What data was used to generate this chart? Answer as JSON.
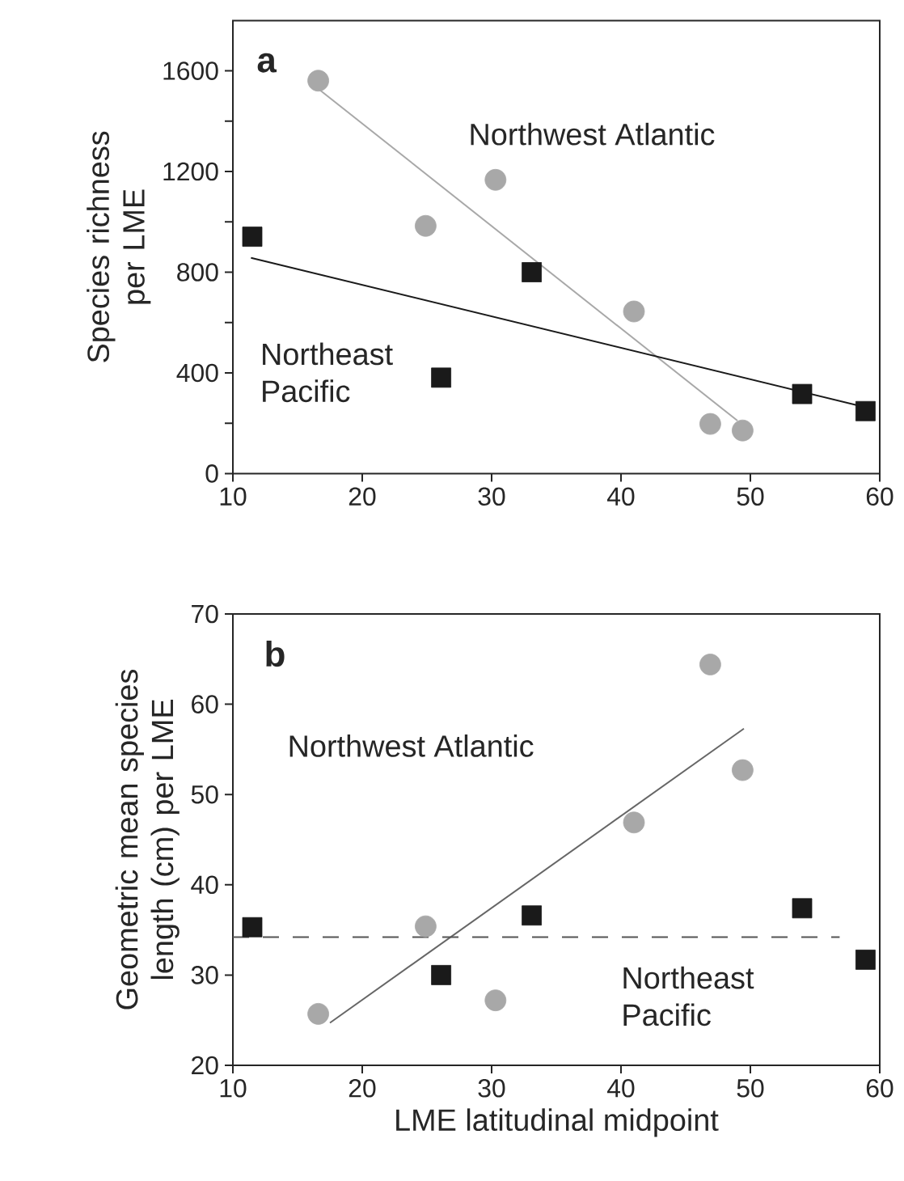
{
  "chart_data": [
    {
      "type": "scatter",
      "ylabel": "Species richness per LME",
      "annotations": [
        "a"
      ],
      "xlim": [
        10,
        60
      ],
      "xticks": [
        10,
        20,
        30,
        40,
        50,
        60
      ],
      "ylim": [
        0,
        1800
      ],
      "yticks": [
        0,
        {
          "value": 200,
          "label": null
        },
        400,
        {
          "value": 600,
          "label": null
        },
        800,
        {
          "value": 1000,
          "label": null
        },
        1200,
        {
          "value": 1400,
          "label": null
        },
        1600
      ],
      "series": [
        {
          "name": "Northwest Atlantic",
          "marker": "circle",
          "color": "#a8a8a8",
          "x": [
            16.6,
            24.9,
            30.3,
            41.0,
            46.9,
            49.4
          ],
          "values": [
            1561,
            984,
            1167,
            644,
            197,
            171
          ]
        },
        {
          "name": "Northeast Pacific",
          "marker": "square",
          "color": "#1a1a1a",
          "x": [
            11.5,
            26.1,
            33.1,
            54.0,
            58.9
          ],
          "values": [
            941,
            381,
            800,
            316,
            248
          ]
        },
        {
          "type": "line",
          "color": "#a8a8a8",
          "line_style": "solid",
          "x": [
            16.6,
            49.0
          ],
          "values": [
            1529,
            210
          ]
        },
        {
          "type": "line",
          "color": "#1a1a1a",
          "line_style": "solid",
          "x": [
            11.4,
            58.9
          ],
          "values": [
            857,
            263
          ]
        }
      ]
    },
    {
      "type": "scatter",
      "xlabel": "LME latitudinal midpoint",
      "ylabel": "Geometric mean species length (cm) per LME",
      "annotations": [
        "b",
        "Northwest Atlantic"
      ],
      "xlim": [
        10,
        60
      ],
      "xticks": [
        10,
        20,
        30,
        40,
        50,
        60
      ],
      "ylim": [
        20,
        70
      ],
      "yticks": [
        20,
        30,
        40,
        50,
        60,
        70
      ],
      "series": [
        {
          "marker": "circle",
          "color": "#a8a8a8",
          "x": [
            16.6,
            24.9,
            30.3,
            41.0,
            46.9,
            49.4
          ],
          "values": [
            25.7,
            35.4,
            27.2,
            46.9,
            64.4,
            52.7
          ]
        },
        {
          "name": "Northeast Pacific",
          "marker": "square",
          "color": "#1a1a1a",
          "x": [
            11.5,
            26.1,
            33.1,
            54.0,
            58.9
          ],
          "values": [
            35.3,
            30.0,
            36.6,
            37.4,
            31.7
          ]
        },
        {
          "type": "line",
          "color": "#666666",
          "line_style": "solid",
          "x": [
            17.5,
            49.5
          ],
          "values": [
            24.7,
            57.3
          ]
        },
        {
          "type": "line",
          "color": "#555555",
          "line_style": "dashed",
          "x": [
            10,
            56.9
          ],
          "values": [
            34.2,
            34.2
          ]
        }
      ]
    }
  ]
}
